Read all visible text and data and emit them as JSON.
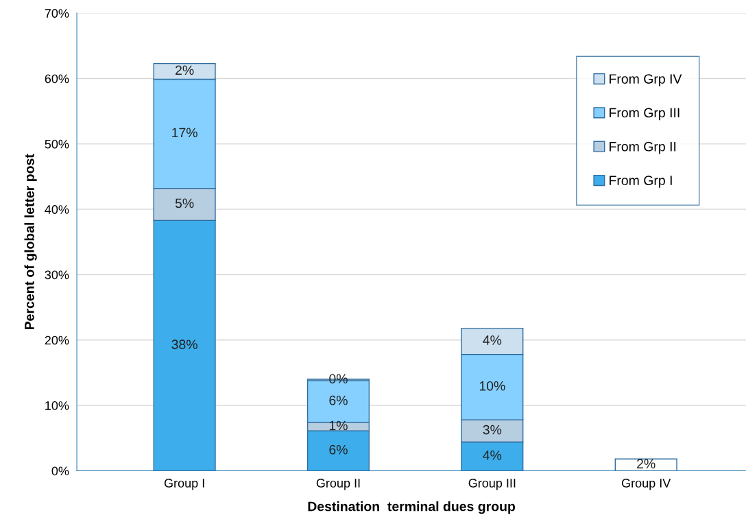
{
  "chart_data": {
    "type": "bar",
    "stacked": true,
    "xlabel": "Destination  terminal dues group",
    "ylabel": "Percent of global letter post",
    "categories": [
      "Group I",
      "Group II",
      "Group III",
      "Group IV"
    ],
    "ylim": [
      0,
      70
    ],
    "yticks": [
      {
        "value": 0,
        "label": "0%"
      },
      {
        "value": 10,
        "label": "10%"
      },
      {
        "value": 20,
        "label": "20%"
      },
      {
        "value": 30,
        "label": "30%"
      },
      {
        "value": 40,
        "label": "40%"
      },
      {
        "value": 50,
        "label": "50%"
      },
      {
        "value": 60,
        "label": "60%"
      },
      {
        "value": 70,
        "label": "70%"
      }
    ],
    "grid": "y",
    "legend": "top right",
    "series": [
      {
        "name": "From Grp I",
        "color": "#3daeeb",
        "colors": [
          "#3daeeb",
          "#3daeeb",
          "#3daeeb",
          "#ffffff"
        ],
        "values": [
          38.3,
          6.1,
          4.4,
          1.8
        ],
        "value_labels": [
          "38%",
          "6%",
          "4%",
          "2%"
        ]
      },
      {
        "name": "From Grp II",
        "color": "#b7cde0",
        "values": [
          4.9,
          1.3,
          3.4,
          null
        ],
        "value_labels": [
          "5%",
          "1%",
          "3%",
          null
        ]
      },
      {
        "name": "From Grp III",
        "color": "#85d0ff",
        "values": [
          16.7,
          6.4,
          10.0,
          null
        ],
        "value_labels": [
          "17%",
          "6%",
          "10%",
          null
        ]
      },
      {
        "name": "From Grp IV",
        "color": "#cce0ef",
        "values": [
          2.4,
          0.2,
          4.0,
          null
        ],
        "value_labels": [
          "2%",
          "0%",
          "4%",
          null
        ]
      }
    ]
  }
}
